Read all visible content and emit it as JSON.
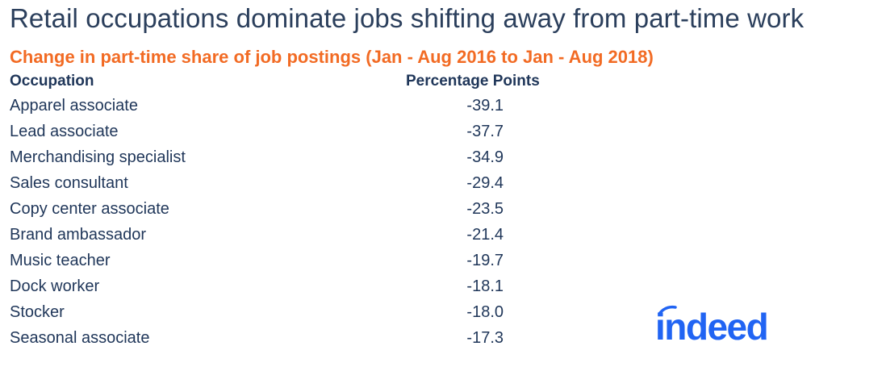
{
  "title": "Retail occupations dominate jobs shifting away from part-time work",
  "subtitle": "Change in part-time share of job postings (Jan - Aug 2016 to Jan - Aug 2018)",
  "logo_text": "indeed",
  "colors": {
    "title": "#2b3f5c",
    "subtitle": "#f26b24",
    "text": "#1f3659",
    "logo": "#2164f3"
  },
  "chart_data": {
    "type": "table",
    "title": "Retail occupations dominate jobs shifting away from part-time work",
    "subtitle": "Change in part-time share of job postings (Jan - Aug 2016 to Jan - Aug 2018)",
    "columns": [
      "Occupation",
      "Percentage Points"
    ],
    "rows": [
      {
        "occupation": "Apparel associate",
        "value": "-39.1"
      },
      {
        "occupation": "Lead associate",
        "value": "-37.7"
      },
      {
        "occupation": "Merchandising specialist",
        "value": "-34.9"
      },
      {
        "occupation": "Sales consultant",
        "value": "-29.4"
      },
      {
        "occupation": "Copy center associate",
        "value": "-23.5"
      },
      {
        "occupation": "Brand ambassador",
        "value": "-21.4"
      },
      {
        "occupation": "Music teacher",
        "value": "-19.7"
      },
      {
        "occupation": "Dock worker",
        "value": "-18.1"
      },
      {
        "occupation": "Stocker",
        "value": "-18.0"
      },
      {
        "occupation": "Seasonal associate",
        "value": "-17.3"
      }
    ]
  }
}
